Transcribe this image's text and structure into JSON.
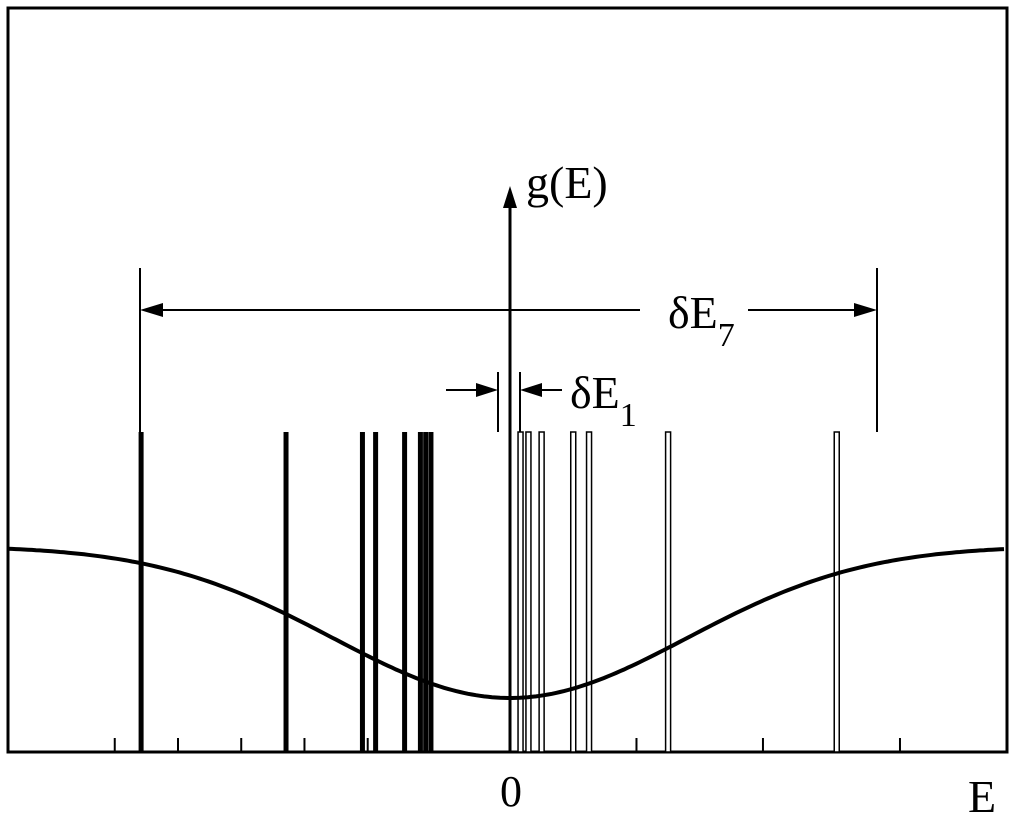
{
  "diagram": {
    "y_axis_label": "g(E)",
    "x_axis_label": "E",
    "origin_label": "0",
    "wide_gap": {
      "symbol": "δE",
      "subscript": "7"
    },
    "narrow_gap": {
      "symbol": "δE",
      "subscript": "1"
    },
    "levels_negative": [
      -7,
      -4.25,
      -2.8,
      -2.55,
      -2.0,
      -1.7,
      -1.6,
      -1.5
    ],
    "levels_positive": [
      0.2,
      0.35,
      0.6,
      1.2,
      1.5,
      3.0,
      6.2
    ],
    "x_range": [
      -8.5,
      8.5
    ],
    "tick_positions": [
      -7.5,
      -6.3,
      -5.1,
      -3.9,
      -2.7,
      -1.5,
      2.4,
      4.8,
      6.2,
      7.4
    ],
    "curve": "g(E), minimum at E = 0, rising toward both edges",
    "colors": {
      "line": "#000000",
      "background": "#ffffff"
    }
  }
}
